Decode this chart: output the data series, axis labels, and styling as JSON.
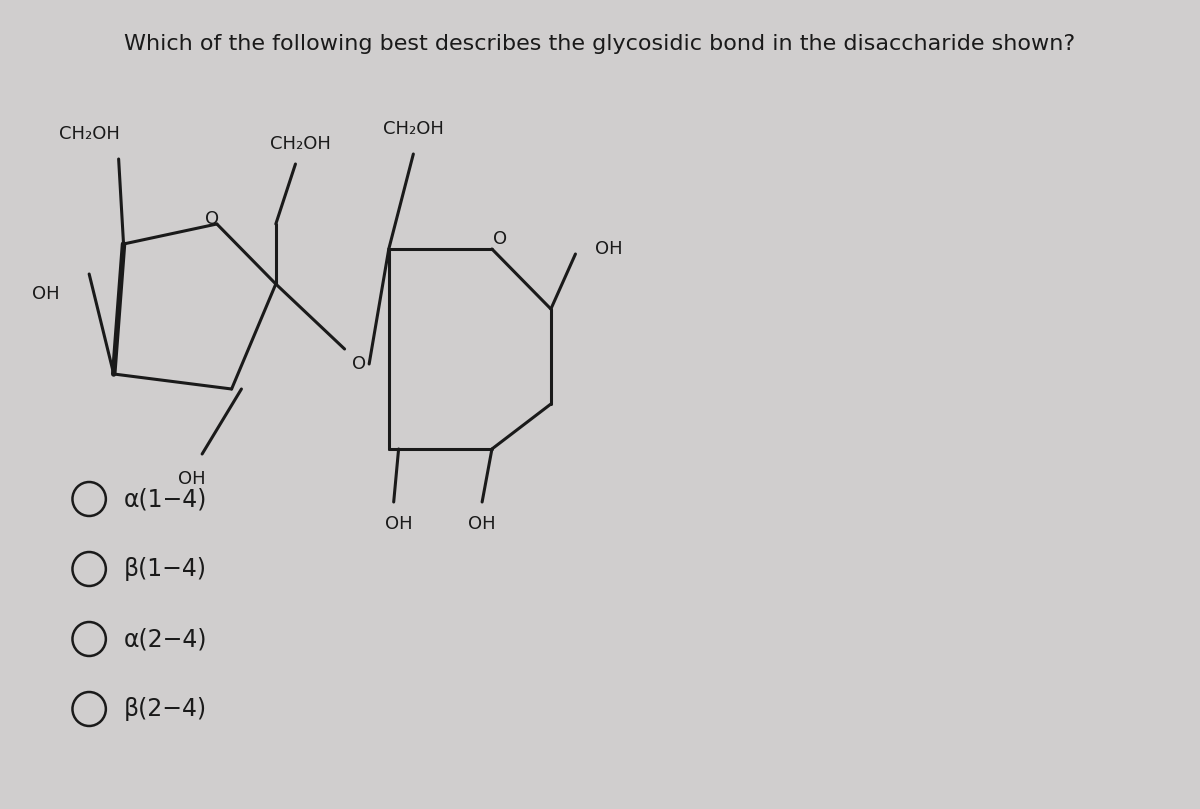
{
  "title": "Which of the following best describes the glycosidic bond in the disaccharide shown?",
  "title_fontsize": 16,
  "title_color": "#1a1a1a",
  "bg_color": "#d0cece",
  "options": [
    "α(1−4)",
    "β(1−4)",
    "α(2−4)",
    "β(2−4)"
  ],
  "options_fontsize": 17,
  "options_color": "#1a1a1a",
  "structure_color": "#1a1a1a",
  "label_fontsize": 13,
  "lw": 2.2
}
